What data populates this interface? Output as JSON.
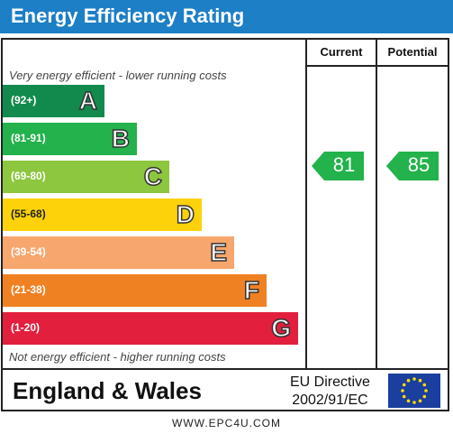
{
  "title": "Energy Efficiency Rating",
  "columns": {
    "current": "Current",
    "potential": "Potential"
  },
  "notes": {
    "top": "Very energy efficient - lower running costs",
    "bottom": "Not energy efficient - higher running costs"
  },
  "footer": {
    "region": "England & Wales",
    "directive_line1": "EU Directive",
    "directive_line2": "2002/91/EC",
    "url": "WWW.EPC4U.COM"
  },
  "chart_data": {
    "type": "bar",
    "categories": [
      "(92+)",
      "(81-91)",
      "(69-80)",
      "(55-68)",
      "(39-54)",
      "(21-38)",
      "(1-20)"
    ],
    "band_letters": [
      "A",
      "B",
      "C",
      "D",
      "E",
      "F",
      "G"
    ],
    "band_colors": [
      "#138a4d",
      "#23b24b",
      "#8dc63f",
      "#fdd20a",
      "#f7a66d",
      "#f08123",
      "#e21f3d"
    ],
    "current": 81,
    "potential": 85,
    "rating_colors": {
      "current": "#23b24b",
      "potential": "#23b24b"
    }
  }
}
